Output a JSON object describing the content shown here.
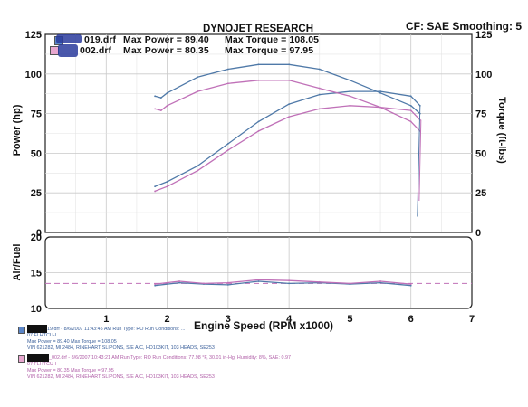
{
  "header": {
    "title": "DYNOJET RESEARCH",
    "corner": "CF: SAE  Smoothing: 5"
  },
  "legend": {
    "run1": {
      "file": "019.drf",
      "max_power_label": "Max Power = 89.40",
      "max_torque_label": "Max Torque = 108.05",
      "color": "#4f79a8"
    },
    "run2": {
      "file": "002.drf",
      "max_power_label": "Max Power = 80.35",
      "max_torque_label": "Max Torque = 97.95",
      "color": "#c071b8"
    }
  },
  "axes": {
    "left_title": "Power (hp)",
    "right_title": "Torque (ft-lbs)",
    "af_title": "Air/Fuel",
    "x_title": "Engine Speed (RPM x1000)"
  },
  "footer": {
    "run1_line1": "19.drf - 8/6/2007 11:43:45 AM  Run Type: RO  Run Conditions: ...",
    "run1_line2": "07 FLHTCU-I",
    "run1_line3": "Max Power = 89.40  Max Torque = 108.05",
    "run1_line4": "VIN 621282, MI 2484, RINEHART SLIPONS, S/E A/C, HD103KIT, 103 HEADS, SE253",
    "run2_line1": "_002.drf - 8/6/2007 10:43:21 AM  Run Type: RO  Run Conditions: 77.98 °F, 30.01 in-Hg, Humidity: 8%, SAE: 0.97",
    "run2_line2": "07 FLHTCU-I",
    "run2_line3": "Max Power = 80.35  Max Torque = 97.95",
    "run2_line4": "VIN 621282, MI 2484, RINEHART SLIPONS, S/E A/C, HD103KIT, 103 HEADS, SE253"
  },
  "chart_data": [
    {
      "type": "line",
      "xlabel": "Engine Speed (RPM x1000)",
      "ylabel": "Power (hp)",
      "y2label": "Torque (ft-lbs)",
      "xlim": [
        0,
        7
      ],
      "ylim": [
        0,
        125
      ],
      "y2lim": [
        0,
        125
      ],
      "xticks": [
        "1",
        "2",
        "3",
        "4",
        "5",
        "6",
        "7"
      ],
      "yticks": [
        "0",
        "25",
        "50",
        "75",
        "100",
        "125"
      ],
      "y2ticks": [
        "0",
        "25",
        "50",
        "75",
        "100",
        "125"
      ],
      "grid": true,
      "series": [
        {
          "name": "019.drf Power",
          "axis": "left",
          "color": "#4f79a8",
          "x": [
            1.8,
            2.0,
            2.5,
            3.0,
            3.5,
            4.0,
            4.5,
            5.0,
            5.5,
            6.0,
            6.15
          ],
          "y": [
            29,
            32,
            42,
            56,
            70,
            81,
            87,
            89,
            89,
            86,
            80
          ]
        },
        {
          "name": "019.drf Torque",
          "axis": "right",
          "color": "#4f79a8",
          "x": [
            1.8,
            1.9,
            2.0,
            2.5,
            3.0,
            3.5,
            4.0,
            4.5,
            5.0,
            5.5,
            6.0,
            6.15
          ],
          "y": [
            86,
            85,
            88,
            98,
            103,
            106,
            106,
            103,
            96,
            88,
            80,
            75
          ]
        },
        {
          "name": "002.drf Power",
          "axis": "left",
          "color": "#c071b8",
          "x": [
            1.8,
            2.0,
            2.5,
            3.0,
            3.5,
            4.0,
            4.5,
            5.0,
            5.5,
            6.0,
            6.15
          ],
          "y": [
            26,
            29,
            39,
            52,
            64,
            73,
            78,
            80,
            79,
            77,
            71
          ]
        },
        {
          "name": "002.drf Torque",
          "axis": "right",
          "color": "#c071b8",
          "x": [
            1.8,
            1.9,
            2.0,
            2.5,
            3.0,
            3.5,
            4.0,
            4.5,
            5.0,
            5.5,
            6.0,
            6.15
          ],
          "y": [
            78,
            77,
            80,
            89,
            94,
            96,
            96,
            91,
            86,
            79,
            70,
            64
          ]
        }
      ]
    },
    {
      "type": "line",
      "ylabel": "Air/Fuel",
      "xlim": [
        0,
        7
      ],
      "ylim": [
        10,
        20
      ],
      "yticks": [
        "10",
        "15",
        "20"
      ],
      "grid": true,
      "reference_line": 13.5,
      "series": [
        {
          "name": "019.drf Air/Fuel",
          "color": "#4f79a8",
          "x": [
            1.8,
            2.2,
            2.6,
            3.0,
            3.5,
            4.0,
            4.5,
            5.0,
            5.5,
            6.0
          ],
          "y": [
            13.2,
            13.6,
            13.4,
            13.3,
            13.8,
            13.5,
            13.6,
            13.4,
            13.6,
            13.2
          ]
        },
        {
          "name": "002.drf Air/Fuel",
          "color": "#c071b8",
          "x": [
            1.8,
            2.2,
            2.6,
            3.0,
            3.5,
            4.0,
            4.5,
            5.0,
            5.5,
            6.0
          ],
          "y": [
            13.4,
            13.8,
            13.5,
            13.6,
            14.0,
            13.9,
            13.7,
            13.5,
            13.8,
            13.4
          ]
        }
      ]
    }
  ]
}
